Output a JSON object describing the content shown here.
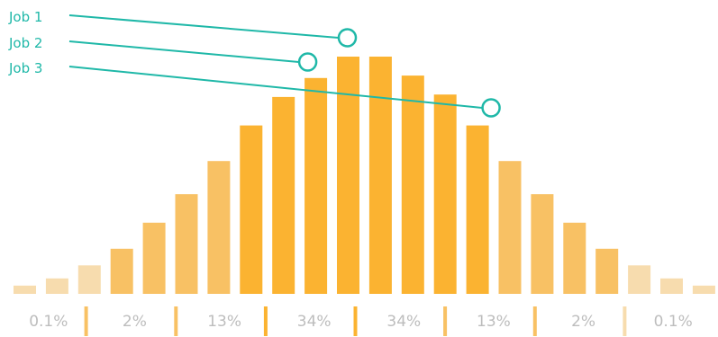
{
  "chart_data": {
    "type": "bar",
    "title": "",
    "xlabel": "",
    "ylabel": "",
    "ylim": [
      0,
      100
    ],
    "grid": false,
    "values": [
      3.5,
      6.5,
      12,
      19,
      30,
      42,
      56,
      71,
      83,
      91,
      100,
      100,
      92,
      84,
      71,
      56,
      42,
      30,
      19,
      12,
      6.5,
      3.5
    ],
    "bar_colors": [
      "#f7dcae",
      "#f7dcae",
      "#f7dcae",
      "#f8c164",
      "#f8c164",
      "#f8c164",
      "#f8c164",
      "#fbb331",
      "#fbb331",
      "#fbb331",
      "#fbb331",
      "#fbb331",
      "#fbb331",
      "#fbb331",
      "#fbb331",
      "#f8c164",
      "#f8c164",
      "#f8c164",
      "#f8c164",
      "#f7dcae",
      "#f7dcae",
      "#f7dcae"
    ],
    "segments": [
      {
        "label": "0.1%",
        "color": "#f7dcae"
      },
      {
        "label": "2%",
        "color": "#f8c164"
      },
      {
        "label": "13%",
        "color": "#f8c164"
      },
      {
        "label": "34%",
        "color": "#fbb331"
      },
      {
        "label": "34%",
        "color": "#fbb331"
      },
      {
        "label": "13%",
        "color": "#f8c164"
      },
      {
        "label": "2%",
        "color": "#f8c164"
      },
      {
        "label": "0.1%",
        "color": "#f7dcae"
      }
    ],
    "annotations": [
      {
        "label": "Job 1",
        "bar_index": 10
      },
      {
        "label": "Job 2",
        "bar_index": 9
      },
      {
        "label": "Job 3",
        "bar_index": 14
      }
    ],
    "marker_color": "#1fb8a8"
  }
}
